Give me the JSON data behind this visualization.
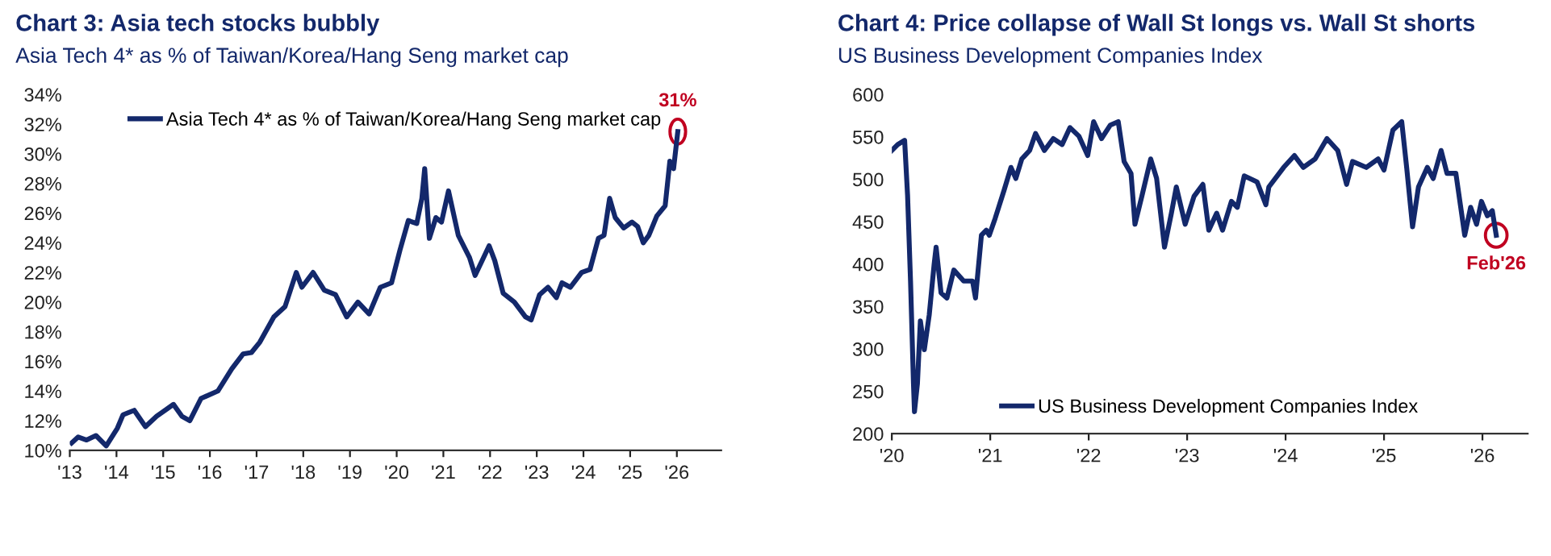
{
  "chart_data": [
    {
      "type": "line",
      "title": "Chart 3: Asia tech stocks bubbly",
      "subtitle": "Asia Tech 4* as % of Taiwan/Korea/Hang Seng market cap",
      "series": [
        {
          "name": "Asia Tech 4* as % of Taiwan/Korea/Hang Seng market cap",
          "color": "#13286b",
          "x": [
            2013.04,
            2013.18,
            2013.36,
            2013.56,
            2013.78,
            2014.02,
            2014.14,
            2014.38,
            2014.62,
            2014.86,
            2015.22,
            2015.4,
            2015.57,
            2015.81,
            2016.17,
            2016.47,
            2016.71,
            2016.89,
            2017.07,
            2017.37,
            2017.61,
            2017.85,
            2017.97,
            2018.21,
            2018.45,
            2018.69,
            2018.93,
            2019.17,
            2019.41,
            2019.65,
            2019.89,
            2020.07,
            2020.25,
            2020.43,
            2020.54,
            2020.6,
            2020.7,
            2020.84,
            2020.96,
            2021.11,
            2021.32,
            2021.56,
            2021.68,
            2021.86,
            2021.98,
            2022.1,
            2022.28,
            2022.52,
            2022.76,
            2022.88,
            2023.06,
            2023.24,
            2023.42,
            2023.54,
            2023.72,
            2023.96,
            2024.14,
            2024.32,
            2024.44,
            2024.56,
            2024.68,
            2024.86,
            2025.04,
            2025.16,
            2025.28,
            2025.4,
            2025.57,
            2025.75,
            2025.85,
            2025.93,
            2026.02
          ],
          "values": [
            10.5,
            10.9,
            10.7,
            11.0,
            10.3,
            11.5,
            12.4,
            12.7,
            11.6,
            12.3,
            13.1,
            12.3,
            12.0,
            13.5,
            14.0,
            15.5,
            16.5,
            16.6,
            17.3,
            19.0,
            19.7,
            22.0,
            21.0,
            22.0,
            20.8,
            20.5,
            19.0,
            20.0,
            19.2,
            21.0,
            21.3,
            23.5,
            25.5,
            25.3,
            27.0,
            29.0,
            24.3,
            25.7,
            25.4,
            27.5,
            24.5,
            23.0,
            21.8,
            23.0,
            23.8,
            22.8,
            20.6,
            20.0,
            19.0,
            18.8,
            20.5,
            21.0,
            20.3,
            21.3,
            21.0,
            22.0,
            22.2,
            24.3,
            24.5,
            27.0,
            25.7,
            25.0,
            25.4,
            25.1,
            24.0,
            24.5,
            25.8,
            26.5,
            29.5,
            29.0,
            31.5
          ]
        }
      ],
      "xlim": [
        2013,
        2026.95
      ],
      "xticks": [
        {
          "value": 2013,
          "label": "'13"
        },
        {
          "value": 2014,
          "label": "'14"
        },
        {
          "value": 2015,
          "label": "'15"
        },
        {
          "value": 2016,
          "label": "'16"
        },
        {
          "value": 2017,
          "label": "'17"
        },
        {
          "value": 2018,
          "label": "'18"
        },
        {
          "value": 2019,
          "label": "'19"
        },
        {
          "value": 2020,
          "label": "'20"
        },
        {
          "value": 2021,
          "label": "'21"
        },
        {
          "value": 2022,
          "label": "'22"
        },
        {
          "value": 2023,
          "label": "'23"
        },
        {
          "value": 2024,
          "label": "'24"
        },
        {
          "value": 2025,
          "label": "'25"
        },
        {
          "value": 2026,
          "label": "'26"
        }
      ],
      "ylim": [
        10,
        34
      ],
      "yticks": [
        {
          "value": 10,
          "label": "10%"
        },
        {
          "value": 12,
          "label": "12%"
        },
        {
          "value": 14,
          "label": "14%"
        },
        {
          "value": 16,
          "label": "16%"
        },
        {
          "value": 18,
          "label": "18%"
        },
        {
          "value": 20,
          "label": "20%"
        },
        {
          "value": 22,
          "label": "22%"
        },
        {
          "value": 24,
          "label": "24%"
        },
        {
          "value": 26,
          "label": "26%"
        },
        {
          "value": 28,
          "label": "28%"
        },
        {
          "value": 30,
          "label": "30%"
        },
        {
          "value": 32,
          "label": "32%"
        },
        {
          "value": 34,
          "label": "34%"
        }
      ],
      "annotations": [
        {
          "text": "31%",
          "x": 2026.02,
          "y": 31.5
        }
      ],
      "legend": "top",
      "grid": false,
      "marker": "none",
      "line_style": "solid"
    },
    {
      "type": "line",
      "title": "Chart 4: Price collapse of Wall St longs vs. Wall St shorts",
      "subtitle": "US Business Development Companies Index",
      "series": [
        {
          "name": "US Business Development Companies Index",
          "color": "#13286b",
          "x": [
            2020.0,
            2020.06,
            2020.13,
            2020.16,
            2020.19,
            2020.22,
            2020.23,
            2020.26,
            2020.29,
            2020.33,
            2020.38,
            2020.43,
            2020.45,
            2020.5,
            2020.56,
            2020.63,
            2020.73,
            2020.82,
            2020.85,
            2020.91,
            2020.96,
            2020.99,
            2021.05,
            2021.14,
            2021.21,
            2021.26,
            2021.32,
            2021.4,
            2021.46,
            2021.55,
            2021.64,
            2021.73,
            2021.81,
            2021.9,
            2021.99,
            2022.05,
            2022.13,
            2022.22,
            2022.3,
            2022.36,
            2022.43,
            2022.47,
            2022.54,
            2022.63,
            2022.69,
            2022.77,
            2022.84,
            2022.89,
            2022.98,
            2023.07,
            2023.16,
            2023.22,
            2023.3,
            2023.36,
            2023.45,
            2023.51,
            2023.58,
            2023.71,
            2023.8,
            2023.83,
            2023.98,
            2024.09,
            2024.18,
            2024.3,
            2024.42,
            2024.53,
            2024.62,
            2024.68,
            2024.82,
            2024.94,
            2025.0,
            2025.09,
            2025.18,
            2025.23,
            2025.29,
            2025.35,
            2025.44,
            2025.5,
            2025.58,
            2025.64,
            2025.73,
            2025.82,
            2025.88,
            2025.94,
            2025.99,
            2026.05,
            2026.1,
            2026.14
          ],
          "values": [
            534,
            541,
            546,
            481,
            380,
            259,
            226,
            259,
            333,
            299,
            340,
            400,
            420,
            366,
            360,
            393,
            380,
            380,
            360,
            434,
            440,
            434,
            454,
            487,
            514,
            501,
            524,
            534,
            554,
            534,
            548,
            541,
            561,
            551,
            528,
            568,
            548,
            564,
            568,
            521,
            507,
            447,
            480,
            524,
            501,
            420,
            460,
            491,
            447,
            480,
            494,
            440,
            460,
            440,
            474,
            467,
            504,
            497,
            470,
            491,
            514,
            528,
            514,
            524,
            548,
            534,
            494,
            521,
            514,
            524,
            511,
            558,
            568,
            514,
            444,
            491,
            514,
            501,
            534,
            507,
            507,
            434,
            467,
            447,
            474,
            457,
            463,
            434
          ]
        }
      ],
      "xlim": [
        2020,
        2026.46
      ],
      "xticks": [
        {
          "value": 2020,
          "label": "'20"
        },
        {
          "value": 2021,
          "label": "'21"
        },
        {
          "value": 2022,
          "label": "'22"
        },
        {
          "value": 2023,
          "label": "'23"
        },
        {
          "value": 2024,
          "label": "'24"
        },
        {
          "value": 2025,
          "label": "'25"
        },
        {
          "value": 2026,
          "label": "'26"
        }
      ],
      "ylim": [
        200,
        600
      ],
      "yticks": [
        200,
        250,
        300,
        350,
        400,
        450,
        500,
        550,
        600
      ],
      "annotations": [
        {
          "text": "Feb'26",
          "x": 2026.14,
          "y": 434
        }
      ],
      "legend": "bottom",
      "grid": false,
      "marker": "none",
      "line_style": "solid"
    }
  ]
}
